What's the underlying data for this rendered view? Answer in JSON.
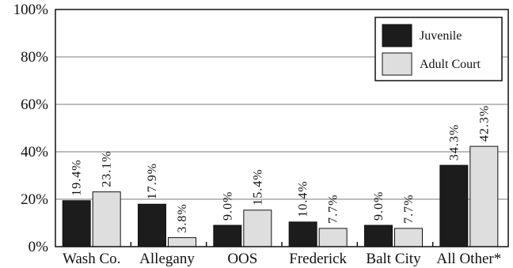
{
  "chart_data": {
    "type": "bar",
    "categories": [
      "Wash Co.",
      "Allegany",
      "OOS",
      "Frederick",
      "Balt City",
      "All Other*"
    ],
    "series": [
      {
        "name": "Juvenile",
        "values": [
          19.4,
          17.9,
          9.0,
          10.4,
          9.0,
          34.3
        ],
        "labels": [
          "19.4%",
          "17.9%",
          "9.0%",
          "10.4%",
          "9.0%",
          "34.3%"
        ],
        "color": "#1c1c1c"
      },
      {
        "name": "Adult Court",
        "values": [
          23.1,
          3.8,
          15.4,
          7.7,
          7.7,
          42.3
        ],
        "labels": [
          "23.1%",
          "3.8%",
          "15.4%",
          "7.7%",
          "7.7%",
          "42.3%"
        ],
        "color": "#dedede"
      }
    ],
    "ylim": [
      0,
      100
    ],
    "yticks": [
      "0%",
      "20%",
      "40%",
      "60%",
      "80%",
      "100%"
    ],
    "grid": true,
    "legend": "top-right"
  }
}
